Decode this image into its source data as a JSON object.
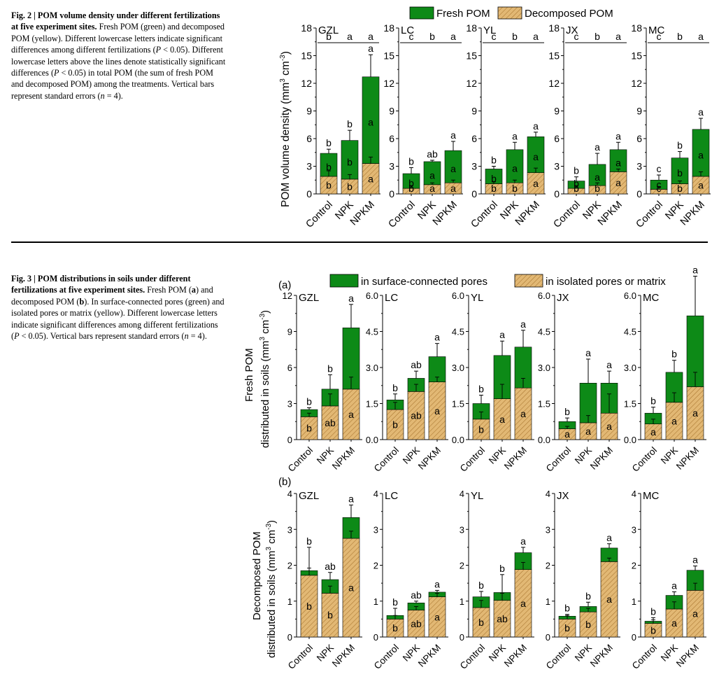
{
  "fig2": {
    "caption": {
      "label": "Fig. 2 | POM volume density under different fertilizations at five experiment sites.",
      "t1": " Fresh POM (green) and decomposed POM (yellow). Different lowercase letters indicate significant differences among different fertilizations (",
      "p": "P",
      "t2": " < 0.05). Different lowercase letters above the lines denote statistically significant differences (",
      "t3": " < 0.05) in total POM (the sum of fresh POM and decomposed POM) among the treatments. Vertical bars represent standard errors (",
      "n": "n",
      "t4": " = 4)."
    },
    "legend": [
      "Fresh POM",
      "Decomposed POM"
    ]
  },
  "fig3": {
    "caption": {
      "label": "Fig. 3 | POM distributions in soils under different fertilizations at five experiment sites.",
      "t1": " Fresh POM (",
      "a": "a",
      "t2": ") and decomposed POM (",
      "b": "b",
      "t3": "). In surface-connected pores (green) and isolated pores or matrix (yellow). Different lowercase letters indicate significant differences among different fertilizations (",
      "p": "P",
      "t4": " < 0.05). Vertical bars represent standard errors (",
      "n": "n",
      "t5": " = 4)."
    },
    "legend": [
      "in surface-connected pores",
      "in isolated pores or matrix"
    ]
  },
  "colors": {
    "green": "#0d8a17",
    "yellow": "#e2b874",
    "hatch": "#a8752f"
  },
  "chart_data": [
    {
      "id": "fig2",
      "type": "bar",
      "stacked": true,
      "ylabel": "POM volume density (mm3 cm-3)",
      "ylabel_main": "POM volume density (mm",
      "ylabel_sup1": "3",
      "ylabel_mid": " cm",
      "ylabel_sup2": "-3",
      "ylabel_end": ")",
      "ylim": [
        0,
        18
      ],
      "yticks": [
        "0",
        "3",
        "6",
        "9",
        "12",
        "15",
        "18"
      ],
      "categories": [
        "Control",
        "NPK",
        "NPKM"
      ],
      "series_names": [
        "Decomposed POM",
        "Fresh POM"
      ],
      "panels": [
        {
          "site": "GZL",
          "total_letters": [
            "b",
            "a",
            "a"
          ],
          "bottom": [
            1.9,
            1.6,
            3.3
          ],
          "top": [
            2.5,
            4.2,
            9.4
          ],
          "err": [
            0.45,
            1.1,
            2.4
          ],
          "bottom_err": [
            0.6,
            0.5,
            0.7
          ],
          "letters_total": [
            "b",
            "b",
            "a"
          ],
          "letters_top": [
            "b",
            "b",
            "a"
          ],
          "letters_bottom": [
            "b",
            "b",
            "a"
          ]
        },
        {
          "site": "LC",
          "total_letters": [
            "c",
            "b",
            "a"
          ],
          "bottom": [
            0.6,
            1.0,
            1.2
          ],
          "top": [
            1.6,
            2.5,
            3.5
          ],
          "err": [
            0.65,
            0.15,
            1.0
          ],
          "bottom_err": [
            0.3,
            0.2,
            0.3
          ],
          "letters_total": [
            "b",
            "ab",
            "a"
          ],
          "letters_top": [
            "b",
            "a",
            "a"
          ],
          "letters_bottom": [
            "b",
            "a",
            "a"
          ]
        },
        {
          "site": "YL",
          "total_letters": [
            "c",
            "b",
            "a"
          ],
          "bottom": [
            1.1,
            1.2,
            2.3
          ],
          "top": [
            1.6,
            3.6,
            3.9
          ],
          "err": [
            0.3,
            0.8,
            0.5
          ],
          "bottom_err": [
            0.2,
            0.3,
            0.5
          ],
          "letters_total": [
            "b",
            "a",
            "a"
          ],
          "letters_top": [
            "b",
            "a",
            "a"
          ],
          "letters_bottom": [
            "b",
            "b",
            "a"
          ]
        },
        {
          "site": "JX",
          "total_letters": [
            "c",
            "b",
            "a"
          ],
          "bottom": [
            0.6,
            0.9,
            2.4
          ],
          "top": [
            0.8,
            2.3,
            2.4
          ],
          "err": [
            0.45,
            1.2,
            0.8
          ],
          "bottom_err": [
            0.3,
            0.3,
            0.3
          ],
          "letters_total": [
            "b",
            "a",
            "a"
          ],
          "letters_top": [
            "b",
            "a",
            "a"
          ],
          "letters_bottom": [
            "b",
            "b",
            "a"
          ]
        },
        {
          "site": "MC",
          "total_letters": [
            "c",
            "b",
            "a"
          ],
          "bottom": [
            0.5,
            1.1,
            1.9
          ],
          "top": [
            1.0,
            2.8,
            5.1
          ],
          "err": [
            0.55,
            0.7,
            1.2
          ],
          "bottom_err": [
            0.3,
            0.3,
            0.5
          ],
          "letters_total": [
            "c",
            "b",
            "a"
          ],
          "letters_top": [
            "c",
            "b",
            "a"
          ],
          "letters_bottom": [
            "c",
            "b",
            "a"
          ]
        }
      ]
    },
    {
      "id": "fig3a",
      "type": "bar",
      "stacked": true,
      "panel_label": "(a)",
      "ylabel_line1": "Fresh POM",
      "ylabel_line2_main": "distributed in soils (mm",
      "ylabel_sup1": "3",
      "ylabel_mid": " cm",
      "ylabel_sup2": "-3",
      "ylabel_end": ")",
      "categories": [
        "Control",
        "NPK",
        "NPKM"
      ],
      "series_names": [
        "in isolated pores or matrix",
        "in surface-connected pores"
      ],
      "panels": [
        {
          "site": "GZL",
          "ylim": [
            0,
            12
          ],
          "yticks": [
            "0",
            "3",
            "6",
            "9",
            "12"
          ],
          "bottom": [
            1.9,
            2.8,
            4.2
          ],
          "top": [
            0.6,
            1.4,
            5.1
          ],
          "err": [
            0.15,
            1.2,
            1.95
          ],
          "bottom_err": [
            0.3,
            1.0,
            1.0
          ],
          "letters_top": [
            "b",
            "b",
            "a"
          ],
          "letters_bottom": [
            "b",
            "ab",
            "a"
          ]
        },
        {
          "site": "LC",
          "ylim": [
            0,
            6
          ],
          "yticks": [
            "0.0",
            "1.5",
            "3.0",
            "4.5",
            "6.0"
          ],
          "bottom": [
            1.25,
            2.0,
            2.4
          ],
          "top": [
            0.4,
            0.55,
            1.05
          ],
          "err": [
            0.25,
            0.3,
            0.55
          ],
          "bottom_err": [
            0.3,
            0.3,
            0.2
          ],
          "letters_top": [
            "b",
            "ab",
            "a"
          ],
          "letters_bottom": [
            "b",
            "ab",
            "a"
          ]
        },
        {
          "site": "YL",
          "ylim": [
            0,
            6
          ],
          "yticks": [
            "0.0",
            "1.5",
            "3.0",
            "4.5",
            "6.0"
          ],
          "bottom": [
            0.85,
            1.7,
            2.15
          ],
          "top": [
            0.65,
            1.8,
            1.7
          ],
          "err": [
            0.35,
            0.6,
            0.7
          ],
          "bottom_err": [
            0.3,
            0.6,
            0.4
          ],
          "letters_top": [
            "b",
            "a",
            "a"
          ],
          "letters_bottom": [
            "b",
            "a",
            "a"
          ]
        },
        {
          "site": "JX",
          "ylim": [
            0,
            6
          ],
          "yticks": [
            "0.0",
            "1.5",
            "3.0",
            "4.5",
            "6.0"
          ],
          "bottom": [
            0.45,
            0.7,
            1.1
          ],
          "top": [
            0.3,
            1.65,
            1.25
          ],
          "err": [
            0.15,
            1.0,
            0.5
          ],
          "bottom_err": [
            0.1,
            0.3,
            0.8
          ],
          "letters_top": [
            "b",
            "a",
            "a"
          ],
          "letters_bottom": [
            "a",
            "a",
            "a"
          ]
        },
        {
          "site": "MC",
          "ylim": [
            0,
            6
          ],
          "yticks": [
            "0.0",
            "1.5",
            "3.0",
            "4.5",
            "6.0"
          ],
          "bottom": [
            0.65,
            1.55,
            2.2
          ],
          "top": [
            0.45,
            1.25,
            2.95
          ],
          "err": [
            0.25,
            0.5,
            1.65
          ],
          "bottom_err": [
            0.2,
            0.4,
            0.6
          ],
          "letters_top": [
            "b",
            "b",
            "a"
          ],
          "letters_bottom": [
            "a",
            "a",
            "a"
          ]
        }
      ]
    },
    {
      "id": "fig3b",
      "type": "bar",
      "stacked": true,
      "panel_label": "(b)",
      "ylabel_line1": "Decomposed POM",
      "ylabel_line2_main": "distributed in soils (mm",
      "ylabel_sup1": "3",
      "ylabel_mid": " cm",
      "ylabel_sup2": "-3",
      "ylabel_end": ")",
      "ylim": [
        0,
        4
      ],
      "yticks": [
        "0",
        "1",
        "2",
        "3",
        "4"
      ],
      "categories": [
        "Control",
        "NPK",
        "NPKM"
      ],
      "series_names": [
        "in isolated pores or matrix",
        "in surface-connected pores"
      ],
      "panels": [
        {
          "site": "GZL",
          "bottom": [
            1.72,
            1.22,
            2.75
          ],
          "top": [
            0.13,
            0.38,
            0.58
          ],
          "err": [
            0.65,
            0.2,
            0.35
          ],
          "bottom_err": [
            0.2,
            0.2,
            0.2
          ],
          "letters_top": [
            "b",
            "ab",
            "a"
          ],
          "letters_bottom": [
            "b",
            "b",
            "a"
          ]
        },
        {
          "site": "LC",
          "bottom": [
            0.5,
            0.75,
            1.12
          ],
          "top": [
            0.1,
            0.2,
            0.13
          ],
          "err": [
            0.2,
            0.05,
            0.05
          ],
          "bottom_err": [
            0.1,
            0.1,
            0.1
          ],
          "letters_top": [
            "b",
            "ab",
            "a"
          ],
          "letters_bottom": [
            "b",
            "ab",
            "a"
          ]
        },
        {
          "site": "YL",
          "bottom": [
            0.82,
            1.02,
            1.88
          ],
          "top": [
            0.3,
            0.22,
            0.47
          ],
          "err": [
            0.15,
            0.5,
            0.15
          ],
          "bottom_err": [
            0.2,
            0.2,
            0.2
          ],
          "letters_top": [
            "b",
            "b",
            "a"
          ],
          "letters_bottom": [
            "b",
            "ab",
            "a"
          ]
        },
        {
          "site": "JX",
          "bottom": [
            0.5,
            0.7,
            2.1
          ],
          "top": [
            0.08,
            0.15,
            0.38
          ],
          "err": [
            0.05,
            0.12,
            0.12
          ],
          "bottom_err": [
            0.1,
            0.1,
            0.1
          ],
          "letters_top": [
            "b",
            "b",
            "a"
          ],
          "letters_bottom": [
            "b",
            "b",
            "a"
          ]
        },
        {
          "site": "MC",
          "bottom": [
            0.38,
            0.78,
            1.3
          ],
          "top": [
            0.06,
            0.38,
            0.56
          ],
          "err": [
            0.1,
            0.1,
            0.12
          ],
          "bottom_err": [
            0.1,
            0.2,
            0.2
          ],
          "letters_top": [
            "b",
            "a",
            "a"
          ],
          "letters_bottom": [
            "b",
            "a",
            "a"
          ]
        }
      ]
    }
  ]
}
